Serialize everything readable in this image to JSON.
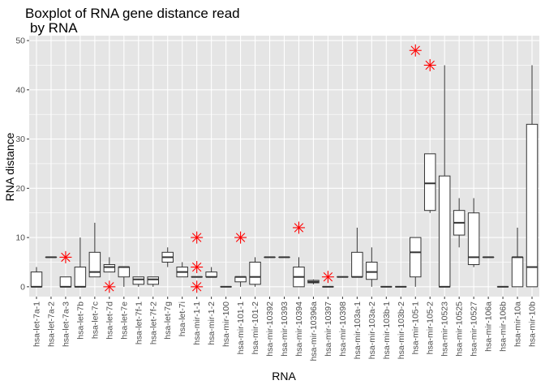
{
  "chart_data": {
    "type": "boxplot",
    "title": "Boxplot of RNA gene distance read",
    "subtitle": "by RNA",
    "xlabel": "RNA",
    "ylabel": "RNA distance",
    "ylim": [
      -2,
      51
    ],
    "yticks": [
      0,
      10,
      20,
      30,
      40,
      50
    ],
    "grid": true,
    "legend": "none",
    "colors": {
      "panel": "#e5e5e5",
      "grid": "#ffffff",
      "box_fill": "#ffffff",
      "box_line": "#333333",
      "outlier": "#ff0000"
    },
    "categories": [
      "hsa-let-7a-1",
      "hsa-let-7a-2",
      "hsa-let-7a-3",
      "hsa-let-7b",
      "hsa-let-7c",
      "hsa-let-7d",
      "hsa-let-7e",
      "hsa-let-7f-1",
      "hsa-let-7f-2",
      "hsa-let-7g",
      "hsa-let-7i",
      "hsa-mir-1-1",
      "hsa-mir-1-2",
      "hsa-mir-100",
      "hsa-mir-101-1",
      "hsa-mir-101-2",
      "hsa-mir-10392",
      "hsa-mir-10393",
      "hsa-mir-10394",
      "hsa-mir-10396a",
      "hsa-mir-10397",
      "hsa-mir-10398",
      "hsa-mir-103a-1",
      "hsa-mir-103a-2",
      "hsa-mir-103b-1",
      "hsa-mir-103b-2",
      "hsa-mir-105-1",
      "hsa-mir-105-2",
      "hsa-mir-10523",
      "hsa-mir-10525",
      "hsa-mir-10527",
      "hsa-mir-106a",
      "hsa-mir-106b",
      "hsa-mir-10a",
      "hsa-mir-10b"
    ],
    "boxes": [
      {
        "min": 0,
        "q1": 0,
        "median": 0,
        "q3": 3,
        "max": 4,
        "outliers": []
      },
      {
        "min": 6,
        "q1": 6,
        "median": 6,
        "q3": 6,
        "max": 6,
        "outliers": []
      },
      {
        "min": 0,
        "q1": 0,
        "median": 0,
        "q3": 2,
        "max": 2,
        "outliers": [
          6
        ]
      },
      {
        "min": 0,
        "q1": 0,
        "median": 0,
        "q3": 4,
        "max": 10,
        "outliers": []
      },
      {
        "min": 2,
        "q1": 2,
        "median": 3,
        "q3": 7,
        "max": 13,
        "outliers": []
      },
      {
        "min": 3,
        "q1": 3,
        "median": 4,
        "q3": 4.5,
        "max": 6,
        "outliers": [
          0
        ]
      },
      {
        "min": 0,
        "q1": 2,
        "median": 4,
        "q3": 4,
        "max": 4,
        "outliers": []
      },
      {
        "min": 0,
        "q1": 0.5,
        "median": 1.5,
        "q3": 2,
        "max": 2,
        "outliers": []
      },
      {
        "min": 0,
        "q1": 0.5,
        "median": 1.5,
        "q3": 2,
        "max": 2,
        "outliers": []
      },
      {
        "min": 4,
        "q1": 5,
        "median": 6,
        "q3": 7,
        "max": 8,
        "outliers": []
      },
      {
        "min": 2,
        "q1": 2,
        "median": 3,
        "q3": 4,
        "max": 5,
        "outliers": []
      },
      {
        "min": 2,
        "q1": 2,
        "median": 2,
        "q3": 2,
        "max": 2,
        "outliers": [
          0,
          4,
          10
        ]
      },
      {
        "min": 2,
        "q1": 2,
        "median": 2,
        "q3": 3,
        "max": 4,
        "outliers": []
      },
      {
        "min": 0,
        "q1": 0,
        "median": 0,
        "q3": 0,
        "max": 0,
        "outliers": []
      },
      {
        "min": 0,
        "q1": 1,
        "median": 2,
        "q3": 2,
        "max": 2,
        "outliers": [
          10
        ]
      },
      {
        "min": 0,
        "q1": 0.5,
        "median": 2,
        "q3": 5,
        "max": 6,
        "outliers": []
      },
      {
        "min": 6,
        "q1": 6,
        "median": 6,
        "q3": 6,
        "max": 6,
        "outliers": []
      },
      {
        "min": 6,
        "q1": 6,
        "median": 6,
        "q3": 6,
        "max": 6,
        "outliers": []
      },
      {
        "min": 0,
        "q1": 0,
        "median": 2,
        "q3": 4,
        "max": 6,
        "outliers": [
          12
        ]
      },
      {
        "min": 0.5,
        "q1": 0.8,
        "median": 1,
        "q3": 1.3,
        "max": 1.5,
        "outliers": []
      },
      {
        "min": 0,
        "q1": 0,
        "median": 0,
        "q3": 0,
        "max": 0,
        "outliers": [
          2
        ]
      },
      {
        "min": 2,
        "q1": 2,
        "median": 2,
        "q3": 2,
        "max": 2,
        "outliers": []
      },
      {
        "min": 2,
        "q1": 2,
        "median": 2,
        "q3": 7,
        "max": 12,
        "outliers": []
      },
      {
        "min": 0,
        "q1": 1.5,
        "median": 3,
        "q3": 5,
        "max": 8,
        "outliers": []
      },
      {
        "min": 0,
        "q1": 0,
        "median": 0,
        "q3": 0,
        "max": 0,
        "outliers": []
      },
      {
        "min": 0,
        "q1": 0,
        "median": 0,
        "q3": 0,
        "max": 0,
        "outliers": []
      },
      {
        "min": 0,
        "q1": 2,
        "median": 7,
        "q3": 10,
        "max": 10,
        "outliers": [
          48
        ]
      },
      {
        "min": 15,
        "q1": 15.5,
        "median": 21,
        "q3": 27,
        "max": 27,
        "outliers": [
          45
        ]
      },
      {
        "min": 0,
        "q1": 0,
        "median": 0,
        "q3": 22.5,
        "max": 45,
        "outliers": []
      },
      {
        "min": 8,
        "q1": 10.5,
        "median": 13,
        "q3": 15.5,
        "max": 18,
        "outliers": []
      },
      {
        "min": 4,
        "q1": 4.5,
        "median": 6,
        "q3": 15,
        "max": 18,
        "outliers": []
      },
      {
        "min": 6,
        "q1": 6,
        "median": 6,
        "q3": 6,
        "max": 6,
        "outliers": []
      },
      {
        "min": 0,
        "q1": 0,
        "median": 0,
        "q3": 0,
        "max": 0,
        "outliers": []
      },
      {
        "min": 0,
        "q1": 0,
        "median": 6,
        "q3": 6,
        "max": 12,
        "outliers": []
      },
      {
        "min": 0,
        "q1": 0,
        "median": 4,
        "q3": 33,
        "max": 45,
        "outliers": []
      }
    ]
  }
}
